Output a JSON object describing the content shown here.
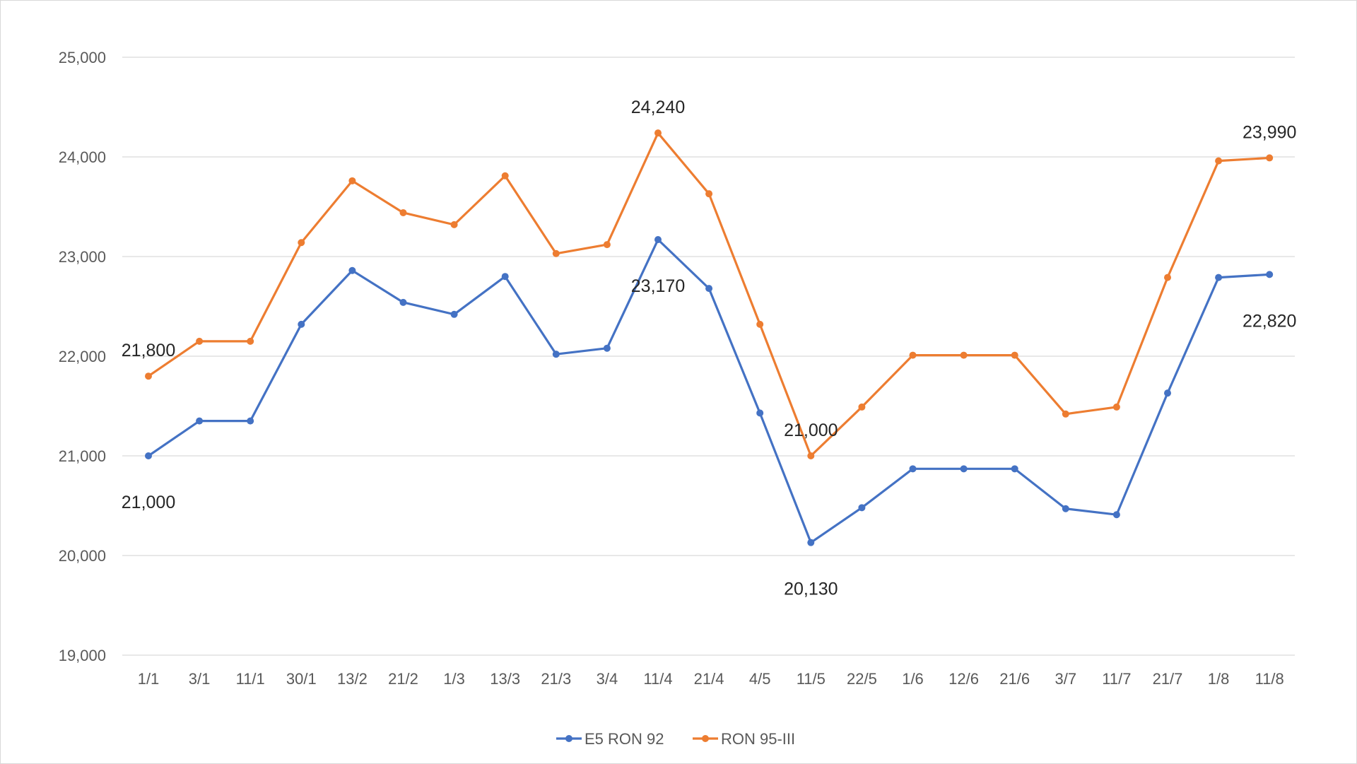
{
  "chart_data": {
    "type": "line",
    "title": "",
    "xlabel": "",
    "ylabel": "",
    "ylim": [
      19000,
      25000
    ],
    "yticks": [
      19000,
      20000,
      21000,
      22000,
      23000,
      24000,
      25000
    ],
    "ytick_labels": [
      "19,000",
      "20,000",
      "21,000",
      "22,000",
      "23,000",
      "24,000",
      "25,000"
    ],
    "grid": true,
    "legend_position": "bottom",
    "categories": [
      "1/1",
      "3/1",
      "11/1",
      "30/1",
      "13/2",
      "21/2",
      "1/3",
      "13/3",
      "21/3",
      "3/4",
      "11/4",
      "21/4",
      "4/5",
      "11/5",
      "22/5",
      "1/6",
      "12/6",
      "21/6",
      "3/7",
      "11/7",
      "21/7",
      "1/8",
      "11/8"
    ],
    "series": [
      {
        "name": "E5 RON 92",
        "color": "#4472c4",
        "values": [
          21000,
          21350,
          21350,
          22320,
          22860,
          22540,
          22420,
          22800,
          22020,
          22080,
          23170,
          22680,
          21430,
          20130,
          20480,
          20870,
          20870,
          20870,
          20470,
          20410,
          21630,
          22790,
          22820
        ]
      },
      {
        "name": "RON 95-III",
        "color": "#ed7d31",
        "values": [
          21800,
          22150,
          22150,
          23140,
          23760,
          23440,
          23320,
          23810,
          23030,
          23120,
          24240,
          23630,
          22320,
          21000,
          21490,
          22010,
          22010,
          22010,
          21420,
          21490,
          22790,
          23960,
          23990
        ]
      }
    ],
    "annotations": [
      {
        "series": 0,
        "index": 0,
        "text": "21,000",
        "pos": "below"
      },
      {
        "series": 1,
        "index": 0,
        "text": "21,800",
        "pos": "above"
      },
      {
        "series": 1,
        "index": 10,
        "text": "24,240",
        "pos": "above"
      },
      {
        "series": 0,
        "index": 10,
        "text": "23,170",
        "pos": "below"
      },
      {
        "series": 1,
        "index": 13,
        "text": "21,000",
        "pos": "above"
      },
      {
        "series": 0,
        "index": 13,
        "text": "20,130",
        "pos": "below"
      },
      {
        "series": 1,
        "index": 22,
        "text": "23,990",
        "pos": "above"
      },
      {
        "series": 0,
        "index": 22,
        "text": "22,820",
        "pos": "below"
      }
    ]
  }
}
